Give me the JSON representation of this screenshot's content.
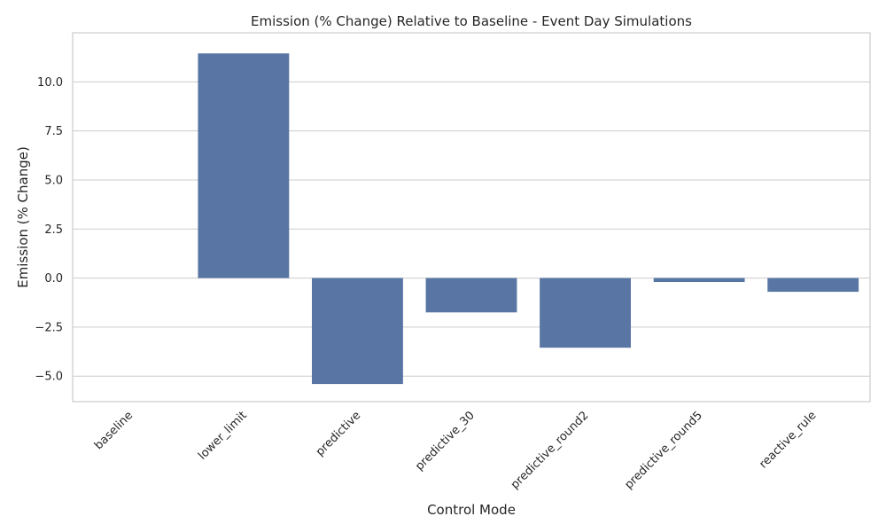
{
  "chart_data": {
    "type": "bar",
    "title": "Emission (% Change) Relative to Baseline - Event Day Simulations",
    "xlabel": "Control Mode",
    "ylabel": "Emission (% Change)",
    "categories": [
      "baseline",
      "lower_limit",
      "predictive",
      "predictive_30",
      "predictive_round2",
      "predictive_round5",
      "reactive_rule"
    ],
    "values": [
      0.0,
      11.45,
      -5.4,
      -1.75,
      -3.55,
      -0.2,
      -0.7
    ],
    "ylim": [
      -6.3,
      12.5
    ],
    "yticks": [
      -5.0,
      -2.5,
      0.0,
      2.5,
      5.0,
      7.5,
      10.0
    ],
    "ytick_labels": [
      "−5.0",
      "−2.5",
      "0.0",
      "2.5",
      "5.0",
      "7.5",
      "10.0"
    ],
    "grid": "y",
    "bar_color": "#5975a4",
    "grid_color": "#cccccc",
    "frame_color": "#cccccc"
  }
}
